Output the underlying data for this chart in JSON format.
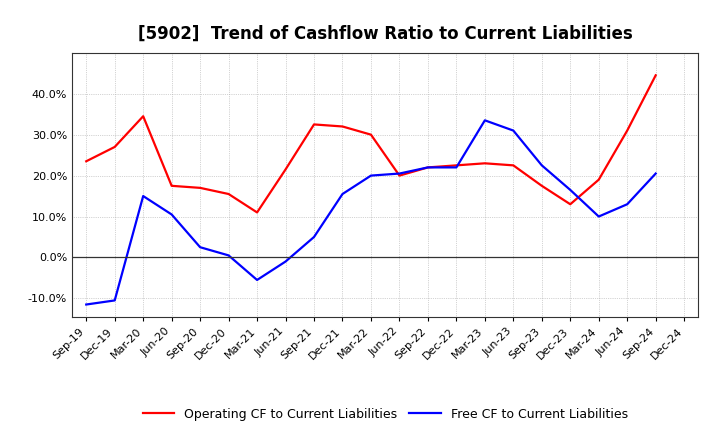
{
  "title": "[5902]  Trend of Cashflow Ratio to Current Liabilities",
  "x_labels": [
    "Sep-19",
    "Dec-19",
    "Mar-20",
    "Jun-20",
    "Sep-20",
    "Dec-20",
    "Mar-21",
    "Jun-21",
    "Sep-21",
    "Dec-21",
    "Mar-22",
    "Jun-22",
    "Sep-22",
    "Dec-22",
    "Mar-23",
    "Jun-23",
    "Sep-23",
    "Dec-23",
    "Mar-24",
    "Jun-24",
    "Sep-24",
    "Dec-24"
  ],
  "operating_cf": [
    0.235,
    0.27,
    0.345,
    0.175,
    0.17,
    0.155,
    0.11,
    0.215,
    0.325,
    0.32,
    0.3,
    0.2,
    0.22,
    0.225,
    0.23,
    0.225,
    0.175,
    0.13,
    0.19,
    0.31,
    0.445,
    null
  ],
  "free_cf": [
    -0.115,
    -0.105,
    0.15,
    0.105,
    0.025,
    0.005,
    -0.055,
    -0.01,
    0.05,
    0.155,
    0.2,
    0.205,
    0.22,
    0.22,
    0.335,
    0.31,
    0.225,
    0.165,
    0.1,
    0.13,
    0.205,
    null
  ],
  "operating_color": "#FF0000",
  "free_color": "#0000FF",
  "background_color": "#FFFFFF",
  "plot_bg_color": "#FFFFFF",
  "grid_color": "#AAAAAA",
  "ylim": [
    -0.145,
    0.5
  ],
  "yticks": [
    -0.1,
    0.0,
    0.1,
    0.2,
    0.3,
    0.4
  ],
  "title_fontsize": 12,
  "tick_fontsize": 8,
  "legend_fontsize": 9,
  "legend_labels": [
    "Operating CF to Current Liabilities",
    "Free CF to Current Liabilities"
  ]
}
